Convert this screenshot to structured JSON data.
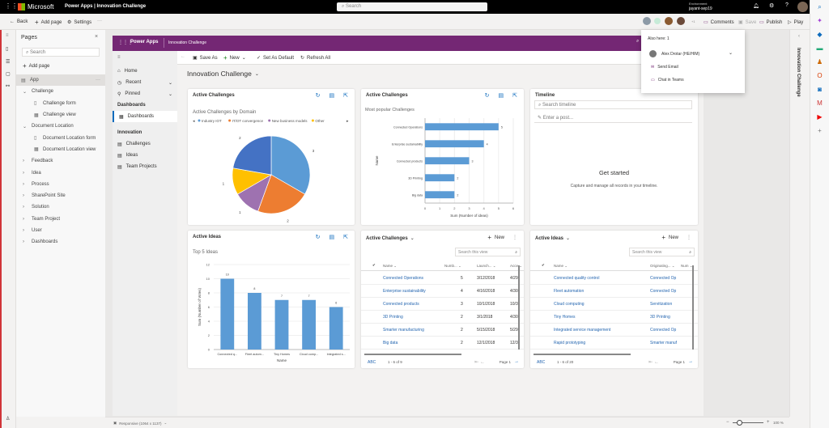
{
  "topbar": {
    "brand": "Microsoft",
    "app_title": "Power Apps  |  Innovation Challenge",
    "search_placeholder": "Search",
    "env_label": "Environment",
    "env_name": "jayant-sep19"
  },
  "toolbar": {
    "back": "Back",
    "add_page": "Add page",
    "settings": "Settings",
    "more": "···",
    "extra_users": "+1",
    "comments": "Comments",
    "save": "Save",
    "publish": "Publish",
    "play": "Play"
  },
  "pages_panel": {
    "title": "Pages",
    "search_placeholder": "Search",
    "add_page": "Add page",
    "tree": [
      {
        "label": "App",
        "level": 0,
        "type": "app"
      },
      {
        "label": "Challenge",
        "level": 1,
        "type": "expanded"
      },
      {
        "label": "Challenge form",
        "level": 2,
        "type": "form"
      },
      {
        "label": "Challenge view",
        "level": 2,
        "type": "view"
      },
      {
        "label": "Document Location",
        "level": 1,
        "type": "expanded"
      },
      {
        "label": "Document Location form",
        "level": 2,
        "type": "form"
      },
      {
        "label": "Document Location view",
        "level": 2,
        "type": "view"
      },
      {
        "label": "Feedback",
        "level": 1,
        "type": "collapsed"
      },
      {
        "label": "Idea",
        "level": 1,
        "type": "collapsed"
      },
      {
        "label": "Process",
        "level": 1,
        "type": "collapsed"
      },
      {
        "label": "SharePoint Site",
        "level": 1,
        "type": "collapsed"
      },
      {
        "label": "Solution",
        "level": 1,
        "type": "collapsed"
      },
      {
        "label": "Team Project",
        "level": 1,
        "type": "collapsed"
      },
      {
        "label": "User",
        "level": 1,
        "type": "collapsed"
      },
      {
        "label": "Dashboards",
        "level": 1,
        "type": "collapsed"
      }
    ]
  },
  "app": {
    "header_brand": "Power Apps",
    "header_title": "Innovation Challenge",
    "nav": {
      "home": "Home",
      "recent": "Recent",
      "pinned": "Pinned",
      "group1": "Dashboards",
      "dashboards": "Dashboards",
      "group2": "Innovation",
      "items": [
        "Challenges",
        "Ideas",
        "Team Projects"
      ]
    },
    "commands": {
      "save_as": "Save As",
      "new": "New",
      "set_default": "Set As Default",
      "refresh": "Refresh All"
    },
    "dashboard_title": "Innovation Challenge"
  },
  "cards": {
    "pie": {
      "title": "Active Challenges",
      "subtitle": "Active Challenges by Domain"
    },
    "hbar": {
      "title": "Active Challenges",
      "subtitle": "Most popular Challenges"
    },
    "timeline": {
      "title": "Timeline",
      "search_placeholder": "Search timeline",
      "post_placeholder": "Enter a post...",
      "empty_title": "Get started",
      "empty_text": "Capture and manage all records in your timeline."
    },
    "vbar": {
      "title": "Active Ideas",
      "subtitle": "Top 5 Ideas"
    },
    "grid1": {
      "title": "Active Challenges",
      "new": "New",
      "search_placeholder": "Search this view",
      "columns": [
        "Name",
        "Numb...",
        "Launch...",
        "Acce"
      ],
      "rows": [
        [
          "Connected Operations",
          "5",
          "3/12/2018",
          "4/29"
        ],
        [
          "Enterprise sustainability",
          "4",
          "4/16/2018",
          "4/30"
        ],
        [
          "Connected products",
          "3",
          "10/1/2018",
          "10/3"
        ],
        [
          "3D Printing",
          "2",
          "3/1/2018",
          "4/30"
        ],
        [
          "Smarter manufacturing",
          "2",
          "5/15/2018",
          "5/29"
        ],
        [
          "Big data",
          "2",
          "12/1/2018",
          "12/3"
        ]
      ],
      "abc": "ABC",
      "count": "1 - 6 of 9",
      "page": "Page 1"
    },
    "grid2": {
      "title": "Active Ideas",
      "new": "New",
      "search_placeholder": "Search this view",
      "columns": [
        "Name",
        "Originating...",
        "Num"
      ],
      "rows": [
        [
          "Connected quality control",
          "Connected Op"
        ],
        [
          "Fleet automation",
          "Connected Op"
        ],
        [
          "Cloud computing",
          "Servitization"
        ],
        [
          "Tiny Homes",
          "3D Printing"
        ],
        [
          "Integrated service management",
          "Connected Op"
        ],
        [
          "Rapid prototyping",
          "Smarter manuf"
        ]
      ],
      "abc": "ABC",
      "count": "1 - 6 of 20",
      "page": "Page 1"
    }
  },
  "chart_data": [
    {
      "type": "pie",
      "title": "Active Challenges by Domain",
      "legend_position": "top",
      "slices": [
        {
          "name": "Industry IOT",
          "value": 3,
          "color": "#5b9bd5"
        },
        {
          "name": "IT/OT convergence",
          "value": 2,
          "color": "#ed7d31"
        },
        {
          "name": "New business models",
          "value": 1,
          "color": "#9e72b0"
        },
        {
          "name": "Other",
          "value": 1,
          "color": "#ffc000"
        },
        {
          "name": "",
          "value": 2,
          "color": "#4472c4"
        }
      ]
    },
    {
      "type": "bar",
      "orientation": "horizontal",
      "title": "Most popular Challenges",
      "xlabel": "Sum (Number of ideas)",
      "ylabel": "Name",
      "xlim": [
        0,
        6
      ],
      "xticks": [
        0,
        1,
        2,
        3,
        4,
        5,
        6
      ],
      "categories": [
        "Connected Operations",
        "Enterprise sustainability",
        "Connected products",
        "3D Printing",
        "Big data"
      ],
      "values": [
        5,
        4,
        3,
        2,
        2
      ],
      "color": "#5b9bd5"
    },
    {
      "type": "bar",
      "title": "Top 5 Ideas",
      "xlabel": "Name",
      "ylabel": "Sum (Number of Votes)",
      "ylim": [
        0,
        12
      ],
      "yticks": [
        0,
        2,
        4,
        6,
        8,
        10,
        12
      ],
      "categories": [
        "Connected q...",
        "Fleet autom...",
        "Tiny Homes",
        "Cloud comp...",
        "Integrated s..."
      ],
      "values": [
        10,
        8,
        7,
        7,
        6
      ],
      "color": "#5b9bd5"
    }
  ],
  "popup": {
    "heading": "Also here: 1",
    "user": "Alex Drotar (HE/HIM)",
    "send_email": "Send Email",
    "chat": "Chat in Teams"
  },
  "right_panel": {
    "title": "Innovation Challenge"
  },
  "status": {
    "responsive": "Responsive (1064 x 1137)",
    "zoom": "100 %"
  },
  "colors": {
    "purple": "#742774",
    "accent": "#0f6cbd"
  }
}
